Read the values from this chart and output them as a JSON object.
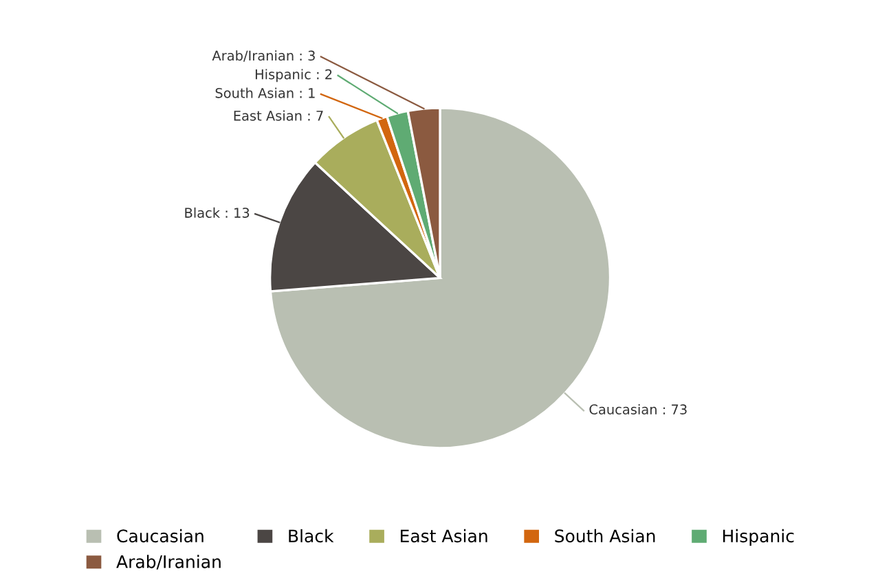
{
  "chart_data": {
    "type": "pie",
    "categories": [
      "Caucasian",
      "Black",
      "East Asian",
      "South Asian",
      "Hispanic",
      "Arab/Iranian"
    ],
    "values": [
      73,
      13,
      7,
      1,
      2,
      3
    ],
    "colors": [
      "#b9bfb2",
      "#4b4644",
      "#a9ad5c",
      "#d2660f",
      "#5fab73",
      "#8b5a40"
    ],
    "value_labels": [
      "Caucasian : 73",
      "Black : 13",
      "East Asian : 7",
      "South Asian : 1",
      "Hispanic : 2",
      "Arab/Iranian : 3"
    ],
    "legend": "bottom"
  }
}
